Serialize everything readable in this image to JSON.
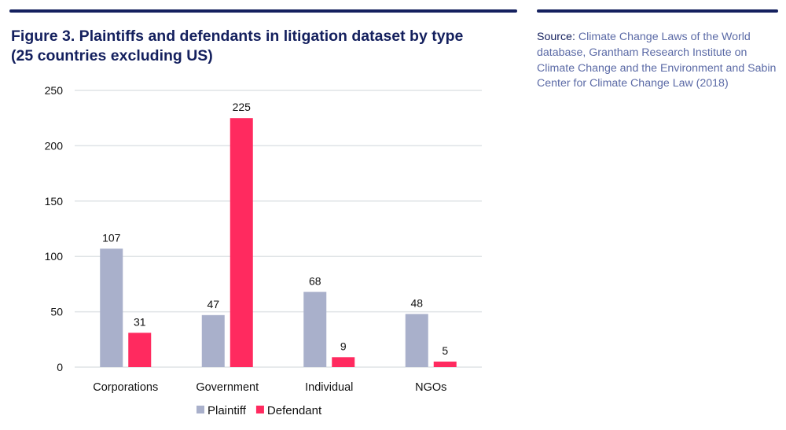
{
  "title_line1": "Figure 3. Plaintiffs and defendants in litigation dataset by type",
  "title_line2": "(25 countries excluding US)",
  "source": {
    "label": "Source:",
    "text": "Climate Change Laws of the World database, Grantham Research Institute on Climate Change and the Environment and Sabin Center for Climate Change Law (2018)"
  },
  "chart_data": {
    "type": "bar",
    "title": "Figure 3. Plaintiffs and defendants in litigation dataset by type (25 countries excluding US)",
    "xlabel": "",
    "ylabel": "",
    "categories": [
      "Corporations",
      "Government",
      "Individual",
      "NGOs"
    ],
    "series": [
      {
        "name": "Plaintiff",
        "color": "#a9b0cb",
        "values": [
          107,
          47,
          68,
          48
        ]
      },
      {
        "name": "Defendant",
        "color": "#ff2a5f",
        "values": [
          31,
          225,
          9,
          5
        ]
      }
    ],
    "ylim": [
      0,
      250
    ],
    "yticks": [
      0,
      50,
      100,
      150,
      200,
      250
    ],
    "grid": true,
    "data_labels": true,
    "legend": "bottom-center"
  }
}
